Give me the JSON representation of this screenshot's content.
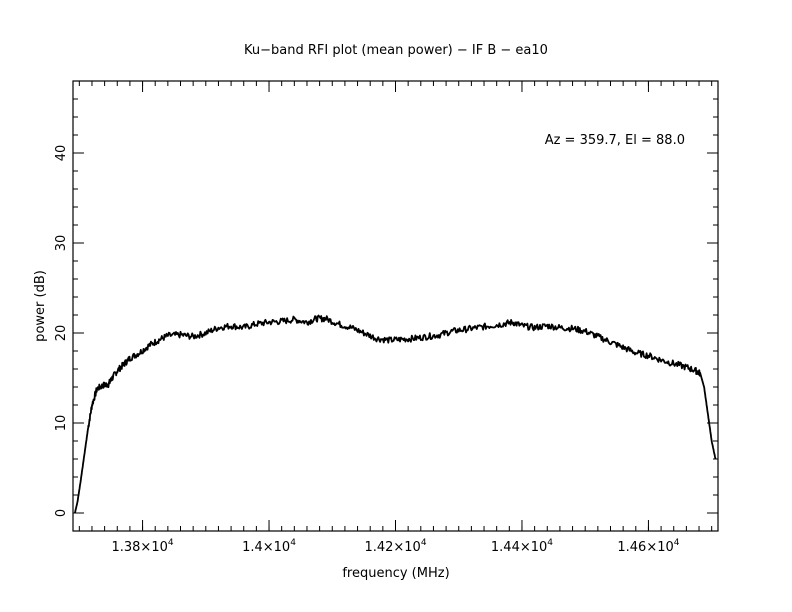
{
  "chart_data": {
    "type": "line",
    "title": "Ku−band RFI plot (mean power) − IF B − ea10",
    "xlabel": "frequency (MHz)",
    "ylabel": "power (dB)",
    "annotation": "Az = 359.7, El = 88.0",
    "xlim": [
      13690,
      14710
    ],
    "ylim": [
      -2,
      48
    ],
    "x_ticks": [
      {
        "value": 13800,
        "mantissa": "1.38",
        "exponent": "4"
      },
      {
        "value": 14000,
        "mantissa": "1.4",
        "exponent": "4"
      },
      {
        "value": 14200,
        "mantissa": "1.42",
        "exponent": "4"
      },
      {
        "value": 14400,
        "mantissa": "1.44",
        "exponent": "4"
      },
      {
        "value": 14600,
        "mantissa": "1.46",
        "exponent": "4"
      }
    ],
    "x_minor_step": 20,
    "y_ticks": [
      0,
      10,
      20,
      30,
      40
    ],
    "y_minor_step": 2,
    "grid": false,
    "line_color": "#000000",
    "series": [
      {
        "values": [
          [
            13693,
            0.0
          ],
          [
            13697,
            1.2
          ],
          [
            13702,
            3.5
          ],
          [
            13708,
            6.5
          ],
          [
            13714,
            9.5
          ],
          [
            13720,
            12.0
          ],
          [
            13728,
            13.8
          ],
          [
            13738,
            14.2
          ],
          [
            13746,
            14.3
          ],
          [
            13752,
            15.0
          ],
          [
            13760,
            15.8
          ],
          [
            13770,
            16.5
          ],
          [
            13780,
            17.2
          ],
          [
            13795,
            17.8
          ],
          [
            13810,
            18.6
          ],
          [
            13825,
            19.2
          ],
          [
            13840,
            19.7
          ],
          [
            13860,
            19.8
          ],
          [
            13880,
            19.6
          ],
          [
            13900,
            20.0
          ],
          [
            13920,
            20.6
          ],
          [
            13940,
            20.8
          ],
          [
            13960,
            20.6
          ],
          [
            13980,
            21.0
          ],
          [
            14000,
            21.2
          ],
          [
            14020,
            21.3
          ],
          [
            14040,
            21.5
          ],
          [
            14060,
            21.2
          ],
          [
            14075,
            21.6
          ],
          [
            14090,
            21.6
          ],
          [
            14110,
            21.0
          ],
          [
            14130,
            20.6
          ],
          [
            14150,
            20.0
          ],
          [
            14170,
            19.4
          ],
          [
            14190,
            19.2
          ],
          [
            14210,
            19.3
          ],
          [
            14230,
            19.4
          ],
          [
            14250,
            19.6
          ],
          [
            14270,
            19.8
          ],
          [
            14290,
            20.2
          ],
          [
            14310,
            20.4
          ],
          [
            14330,
            20.6
          ],
          [
            14350,
            20.8
          ],
          [
            14370,
            21.0
          ],
          [
            14385,
            21.2
          ],
          [
            14400,
            20.8
          ],
          [
            14420,
            20.6
          ],
          [
            14440,
            20.8
          ],
          [
            14460,
            20.6
          ],
          [
            14480,
            20.5
          ],
          [
            14500,
            20.2
          ],
          [
            14520,
            19.6
          ],
          [
            14540,
            19.0
          ],
          [
            14560,
            18.4
          ],
          [
            14580,
            17.8
          ],
          [
            14600,
            17.5
          ],
          [
            14620,
            17.0
          ],
          [
            14640,
            16.6
          ],
          [
            14660,
            16.2
          ],
          [
            14675,
            15.8
          ],
          [
            14682,
            15.5
          ],
          [
            14688,
            14.0
          ],
          [
            14694,
            11.0
          ],
          [
            14700,
            8.0
          ],
          [
            14706,
            6.0
          ]
        ]
      }
    ]
  }
}
